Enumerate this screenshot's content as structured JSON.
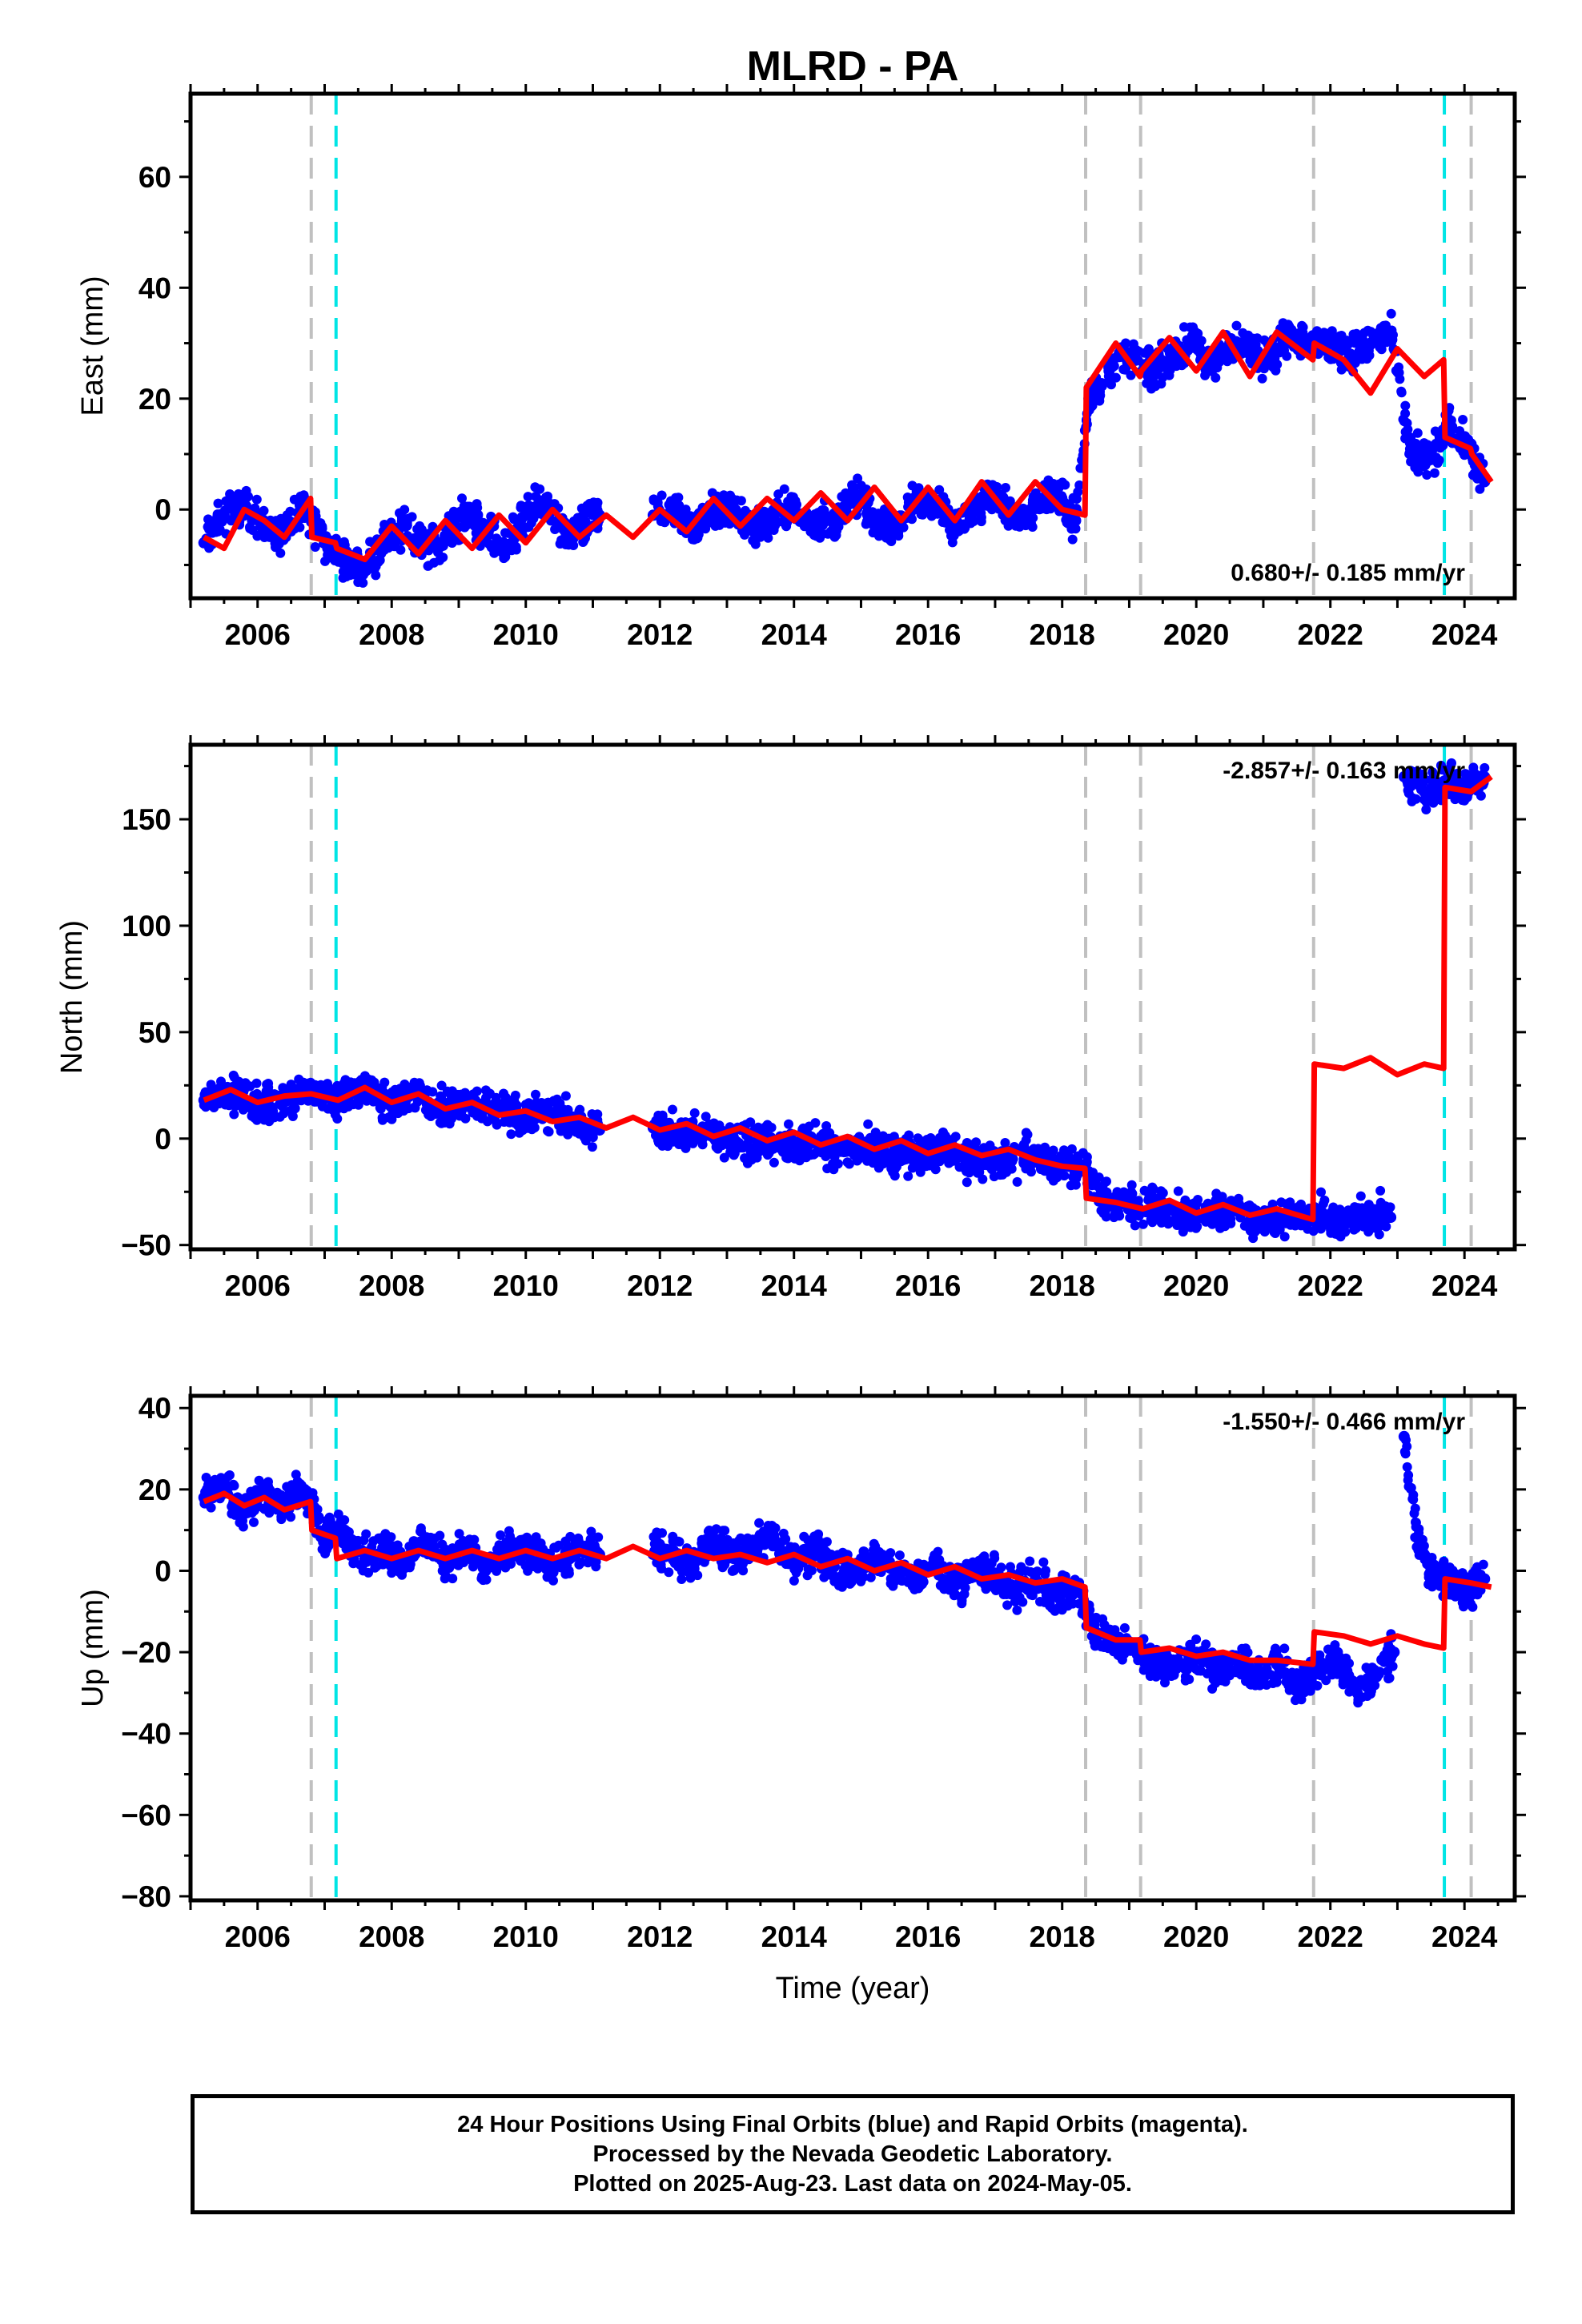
{
  "title": "MLRD - PA",
  "chart_data": [
    {
      "type": "scatter",
      "id": "east",
      "ylabel": "East (mm)",
      "xlabel": "",
      "xlim": [
        2005.0,
        2024.75
      ],
      "ylim": [
        -16,
        75
      ],
      "xticks": [
        2006,
        2008,
        2010,
        2012,
        2014,
        2016,
        2018,
        2020,
        2022,
        2024
      ],
      "yticks": [
        0,
        20,
        40,
        60
      ],
      "rate_text": "0.680+/- 0.185 mm/yr",
      "rate_position": "bottom-right",
      "events_gray": [
        2006.8,
        2018.35,
        2019.17,
        2021.75,
        2024.1
      ],
      "events_cyan": [
        2007.17,
        2023.7
      ],
      "series": [
        {
          "role": "observations",
          "color": "#0000ff",
          "x": [
            2005.2,
            2005.5,
            2005.8,
            2006.1,
            2006.4,
            2006.7,
            2007.0,
            2007.3,
            2007.6,
            2007.9,
            2008.2,
            2008.5,
            2008.8,
            2009.1,
            2009.4,
            2009.7,
            2010.0,
            2010.3,
            2010.6,
            2010.9,
            2011.1,
            2011.9,
            2012.2,
            2012.5,
            2012.8,
            2013.1,
            2013.4,
            2013.7,
            2014.0,
            2014.3,
            2014.6,
            2014.9,
            2015.2,
            2015.5,
            2015.8,
            2016.1,
            2016.4,
            2016.7,
            2017.0,
            2017.3,
            2017.6,
            2017.9,
            2018.2,
            2018.4,
            2018.7,
            2019.0,
            2019.3,
            2019.6,
            2019.9,
            2020.2,
            2020.5,
            2020.8,
            2021.1,
            2021.4,
            2021.7,
            2022.0,
            2022.3,
            2022.6,
            2022.9,
            2023.2,
            2023.5,
            2023.75,
            2024.0,
            2024.3
          ],
          "y": [
            -6,
            -1,
            1,
            -3,
            -5,
            1,
            -6,
            -9,
            -11,
            -5,
            -3,
            -7,
            -5,
            -1,
            -4,
            -7,
            -1,
            1,
            -5,
            -3,
            -1,
            -1,
            0,
            -4,
            0,
            0,
            -4,
            -1,
            0,
            -3,
            -2,
            3,
            -2,
            -3,
            2,
            1,
            -3,
            0,
            3,
            -2,
            1,
            3,
            -2,
            20,
            25,
            28,
            25,
            27,
            30,
            26,
            30,
            29,
            27,
            32,
            30,
            30,
            28,
            30,
            32,
            10,
            9,
            15,
            12,
            5
          ]
        },
        {
          "role": "model",
          "color": "#ff0000",
          "x": [
            2005.2,
            2005.5,
            2005.8,
            2006.1,
            2006.4,
            2006.79,
            2006.81,
            2007.16,
            2007.18,
            2007.6,
            2008.0,
            2008.4,
            2008.8,
            2009.2,
            2009.6,
            2010.0,
            2010.4,
            2010.8,
            2011.2,
            2011.6,
            2012.0,
            2012.4,
            2012.8,
            2013.2,
            2013.6,
            2014.0,
            2014.4,
            2014.8,
            2015.2,
            2015.6,
            2016.0,
            2016.4,
            2016.8,
            2017.2,
            2017.6,
            2018.0,
            2018.34,
            2018.36,
            2018.8,
            2019.16,
            2019.18,
            2019.6,
            2020.0,
            2020.4,
            2020.8,
            2021.2,
            2021.74,
            2021.76,
            2022.2,
            2022.6,
            2023.0,
            2023.4,
            2023.69,
            2023.71,
            2024.09,
            2024.11,
            2024.4
          ],
          "y": [
            -5,
            -7,
            0,
            -2,
            -5,
            2,
            -5,
            -6,
            -7,
            -9,
            -3,
            -8,
            -2,
            -7,
            -1,
            -6,
            0,
            -5,
            -1,
            -5,
            0,
            -4,
            2,
            -3,
            2,
            -2,
            3,
            -2,
            4,
            -2,
            4,
            -2,
            5,
            -1,
            5,
            0,
            -1,
            22,
            30,
            24,
            25,
            31,
            25,
            32,
            24,
            32,
            27,
            30,
            27,
            21,
            29,
            24,
            27,
            13,
            11,
            10,
            5
          ]
        }
      ]
    },
    {
      "type": "scatter",
      "id": "north",
      "ylabel": "North (mm)",
      "xlabel": "",
      "xlim": [
        2005.0,
        2024.75
      ],
      "ylim": [
        -52,
        185
      ],
      "xticks": [
        2006,
        2008,
        2010,
        2012,
        2014,
        2016,
        2018,
        2020,
        2022,
        2024
      ],
      "yticks": [
        -50,
        0,
        50,
        100,
        150
      ],
      "rate_text": "-2.857+/- 0.163 mm/yr",
      "rate_position": "top-right",
      "events_gray": [
        2006.8,
        2018.35,
        2019.17,
        2021.75,
        2024.1
      ],
      "events_cyan": [
        2007.17,
        2023.7
      ],
      "series": [
        {
          "role": "observations",
          "color": "#0000ff",
          "x": [
            2005.2,
            2005.6,
            2006.0,
            2006.4,
            2006.8,
            2007.2,
            2007.6,
            2008.0,
            2008.4,
            2008.8,
            2009.2,
            2009.6,
            2010.0,
            2010.4,
            2010.8,
            2011.1,
            2011.9,
            2012.3,
            2012.7,
            2013.1,
            2013.5,
            2013.9,
            2014.3,
            2014.7,
            2015.1,
            2015.5,
            2015.9,
            2016.3,
            2016.7,
            2017.1,
            2017.5,
            2017.9,
            2018.3,
            2018.6,
            2019.0,
            2019.4,
            2019.8,
            2020.2,
            2020.6,
            2021.0,
            2021.4,
            2021.8,
            2022.2,
            2022.6,
            2022.9,
            2023.1,
            2023.4,
            2023.7,
            2024.0,
            2024.3
          ],
          "y": [
            18,
            22,
            16,
            18,
            22,
            18,
            24,
            17,
            20,
            14,
            16,
            14,
            10,
            12,
            7,
            4,
            5,
            2,
            3,
            -2,
            0,
            -4,
            -2,
            -6,
            -4,
            -7,
            -8,
            -6,
            -10,
            -10,
            -8,
            -13,
            -14,
            -28,
            -32,
            -33,
            -35,
            -35,
            -34,
            -38,
            -37,
            -37,
            -38,
            -36,
            -37,
            170,
            163,
            168,
            166,
            170
          ]
        },
        {
          "role": "model",
          "color": "#ff0000",
          "x": [
            2005.2,
            2005.6,
            2006.0,
            2006.4,
            2006.8,
            2007.2,
            2007.6,
            2008.0,
            2008.4,
            2008.8,
            2009.2,
            2009.6,
            2010.0,
            2010.4,
            2010.8,
            2011.2,
            2011.6,
            2012.0,
            2012.4,
            2012.8,
            2013.2,
            2013.6,
            2014.0,
            2014.4,
            2014.8,
            2015.2,
            2015.6,
            2016.0,
            2016.4,
            2016.8,
            2017.2,
            2017.6,
            2018.0,
            2018.34,
            2018.36,
            2018.8,
            2019.2,
            2019.6,
            2020.0,
            2020.4,
            2020.8,
            2021.2,
            2021.74,
            2021.76,
            2022.2,
            2022.6,
            2023.0,
            2023.4,
            2023.69,
            2023.71,
            2024.1,
            2024.4
          ],
          "y": [
            18,
            23,
            17,
            20,
            21,
            18,
            24,
            17,
            21,
            14,
            17,
            11,
            13,
            8,
            10,
            5,
            10,
            4,
            7,
            1,
            5,
            -1,
            3,
            -3,
            1,
            -5,
            -1,
            -7,
            -3,
            -8,
            -5,
            -10,
            -13,
            -14,
            -28,
            -30,
            -33,
            -29,
            -35,
            -31,
            -36,
            -33,
            -38,
            35,
            33,
            38,
            30,
            35,
            33,
            165,
            163,
            170
          ]
        }
      ]
    },
    {
      "type": "scatter",
      "id": "up",
      "ylabel": "Up (mm)",
      "xlabel": "Time (year)",
      "xlim": [
        2005.0,
        2024.75
      ],
      "ylim": [
        -81,
        43
      ],
      "xticks": [
        2006,
        2008,
        2010,
        2012,
        2014,
        2016,
        2018,
        2020,
        2022,
        2024
      ],
      "yticks": [
        -80,
        -60,
        -40,
        -20,
        0,
        20,
        40
      ],
      "rate_text": "-1.550+/- 0.466 mm/yr",
      "rate_position": "top-right",
      "events_gray": [
        2006.8,
        2018.35,
        2019.17,
        2021.75,
        2024.1
      ],
      "events_cyan": [
        2007.17,
        2023.7
      ],
      "series": [
        {
          "role": "observations",
          "color": "#0000ff",
          "x": [
            2005.2,
            2005.5,
            2005.8,
            2006.1,
            2006.4,
            2006.7,
            2007.0,
            2007.3,
            2007.6,
            2007.9,
            2008.2,
            2008.5,
            2008.8,
            2009.1,
            2009.4,
            2009.7,
            2010.0,
            2010.3,
            2010.6,
            2010.9,
            2011.1,
            2011.9,
            2012.2,
            2012.5,
            2012.8,
            2013.1,
            2013.4,
            2013.7,
            2014.0,
            2014.3,
            2014.6,
            2014.9,
            2015.2,
            2015.5,
            2015.8,
            2016.1,
            2016.4,
            2016.7,
            2017.0,
            2017.3,
            2017.6,
            2017.9,
            2018.2,
            2018.5,
            2018.8,
            2019.1,
            2019.4,
            2019.7,
            2020.0,
            2020.3,
            2020.6,
            2020.9,
            2021.2,
            2021.5,
            2021.8,
            2022.1,
            2022.4,
            2022.7,
            2022.95,
            2023.1,
            2023.3,
            2023.5,
            2023.8,
            2024.0,
            2024.3
          ],
          "y": [
            18,
            22,
            14,
            20,
            16,
            20,
            8,
            10,
            3,
            6,
            2,
            8,
            2,
            6,
            0,
            4,
            5,
            2,
            3,
            5,
            4,
            4,
            5,
            2,
            8,
            3,
            6,
            8,
            2,
            5,
            1,
            0,
            3,
            0,
            -2,
            2,
            -3,
            0,
            -1,
            -5,
            -2,
            -6,
            -4,
            -15,
            -18,
            -20,
            -22,
            -24,
            -20,
            -25,
            -22,
            -26,
            -23,
            -28,
            -25,
            -22,
            -30,
            -25,
            -20,
            33,
            8,
            0,
            -2,
            -5,
            -2
          ]
        },
        {
          "role": "model",
          "color": "#ff0000",
          "x": [
            2005.2,
            2005.5,
            2005.8,
            2006.1,
            2006.4,
            2006.79,
            2006.81,
            2007.16,
            2007.18,
            2007.6,
            2008.0,
            2008.4,
            2008.8,
            2009.2,
            2009.6,
            2010.0,
            2010.4,
            2010.8,
            2011.2,
            2011.6,
            2012.0,
            2012.4,
            2012.8,
            2013.2,
            2013.6,
            2014.0,
            2014.4,
            2014.8,
            2015.2,
            2015.6,
            2016.0,
            2016.4,
            2016.8,
            2017.2,
            2017.6,
            2018.0,
            2018.34,
            2018.36,
            2018.8,
            2019.16,
            2019.18,
            2019.6,
            2020.0,
            2020.4,
            2020.8,
            2021.2,
            2021.74,
            2021.76,
            2022.2,
            2022.6,
            2023.0,
            2023.4,
            2023.69,
            2023.71,
            2024.1,
            2024.4
          ],
          "y": [
            17,
            19,
            16,
            18,
            15,
            17,
            10,
            8,
            3,
            5,
            3,
            5,
            3,
            5,
            3,
            5,
            3,
            5,
            3,
            6,
            3,
            5,
            3,
            4,
            2,
            4,
            1,
            3,
            0,
            2,
            -1,
            1,
            -2,
            -1,
            -3,
            -2,
            -4,
            -14,
            -17,
            -17,
            -20,
            -19,
            -21,
            -20,
            -22,
            -22,
            -23,
            -15,
            -16,
            -18,
            -16,
            -18,
            -19,
            -2,
            -3,
            -4
          ]
        }
      ]
    }
  ],
  "caption": {
    "line1": "24 Hour Positions Using Final Orbits (blue) and Rapid Orbits (magenta).",
    "line2": "Processed by the Nevada Geodetic Laboratory.",
    "line3": "Plotted on 2025-Aug-23. Last data on 2024-May-05."
  }
}
